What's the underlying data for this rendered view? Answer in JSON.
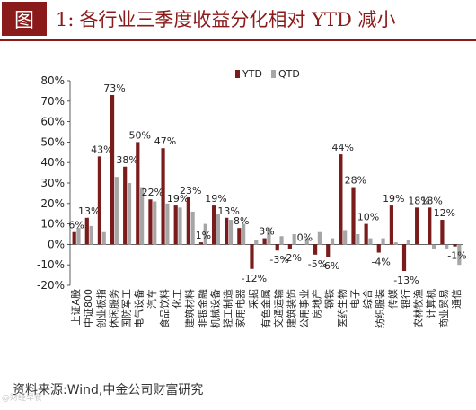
{
  "figure": {
    "label": "图",
    "number": "1:",
    "title": "各行业三季度收益分化相对 YTD 减小"
  },
  "source": "资料来源:Wind,中金公司财富研究",
  "watermark": "@财经早餐",
  "colors": {
    "ytd": "#7b1c1c",
    "qtd": "#a6a6a6",
    "accent": "#8b1a1a"
  },
  "chart_data": {
    "type": "bar",
    "title": "",
    "xlabel": "",
    "ylabel": "",
    "ylim": [
      -20,
      80
    ],
    "yticks": [
      "80%",
      "70%",
      "60%",
      "50%",
      "40%",
      "30%",
      "20%",
      "10%",
      "0%",
      "-10%",
      "-20%"
    ],
    "legend": {
      "position": "top-right",
      "entries": [
        "YTD",
        "QTD"
      ]
    },
    "categories": [
      "上证A股",
      "中证800",
      "创业板指",
      "休闲服务",
      "国防军工",
      "电气设备",
      "汽车",
      "食品饮料",
      "化工",
      "建筑材料",
      "非银金融",
      "机械设备",
      "轻工制造",
      "家用电器",
      "采掘",
      "有色金属",
      "交通运输",
      "建筑装饰",
      "公用事业",
      "房地产",
      "钢铁",
      "医药生物",
      "电子",
      "综合",
      "纺织服装",
      "传媒",
      "银行",
      "农林牧渔",
      "计算机",
      "商业贸易",
      "通信"
    ],
    "series": [
      {
        "name": "YTD",
        "values": [
          6,
          13,
          43,
          73,
          38,
          50,
          22,
          47,
          19,
          23,
          1,
          19,
          13,
          8,
          -12,
          3,
          -3,
          -2,
          0,
          -5,
          -6,
          44,
          28,
          10,
          -4,
          19,
          -13,
          18,
          18,
          12,
          -1
        ]
      },
      {
        "name": "QTD",
        "values": [
          8,
          9,
          6,
          33,
          30,
          28,
          21,
          20,
          18,
          16,
          10,
          15,
          12,
          10,
          2,
          8,
          4,
          5,
          3,
          6,
          3,
          7,
          5,
          3,
          3,
          1,
          2,
          0,
          -2,
          -2,
          -10
        ]
      }
    ],
    "data_labels": [
      "6%",
      "13%",
      "43%",
      "73%",
      "38%",
      "50%",
      "22%",
      "47%",
      "19%",
      "23%",
      "1%",
      "19%",
      "13%",
      "8%",
      "-12%",
      "3%",
      "-3%",
      "-2%",
      "0%",
      "-5%",
      "-6%",
      "44%",
      "28%",
      "10%",
      "-4%",
      "19%",
      "-13%",
      "18%",
      "18%",
      "12%",
      "-1%"
    ]
  }
}
